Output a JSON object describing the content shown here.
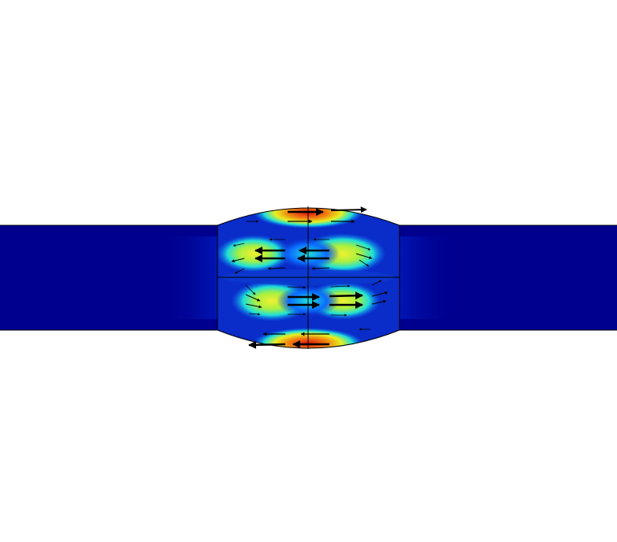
{
  "figure": {
    "kind": "field-plot",
    "colormap": "jet",
    "colors": {
      "background": "#ffffff",
      "waveguide": "#00008f",
      "low": "#0000a8",
      "mid_low": "#0a6cff",
      "mid": "#1ee0d8",
      "mid_high": "#e8f020",
      "high": "#f08010",
      "max": "#e01010",
      "outline": "#000000",
      "arrow": "#000000"
    },
    "regions": [
      {
        "name": "left-waveguide"
      },
      {
        "name": "cavity"
      },
      {
        "name": "right-waveguide"
      }
    ]
  }
}
